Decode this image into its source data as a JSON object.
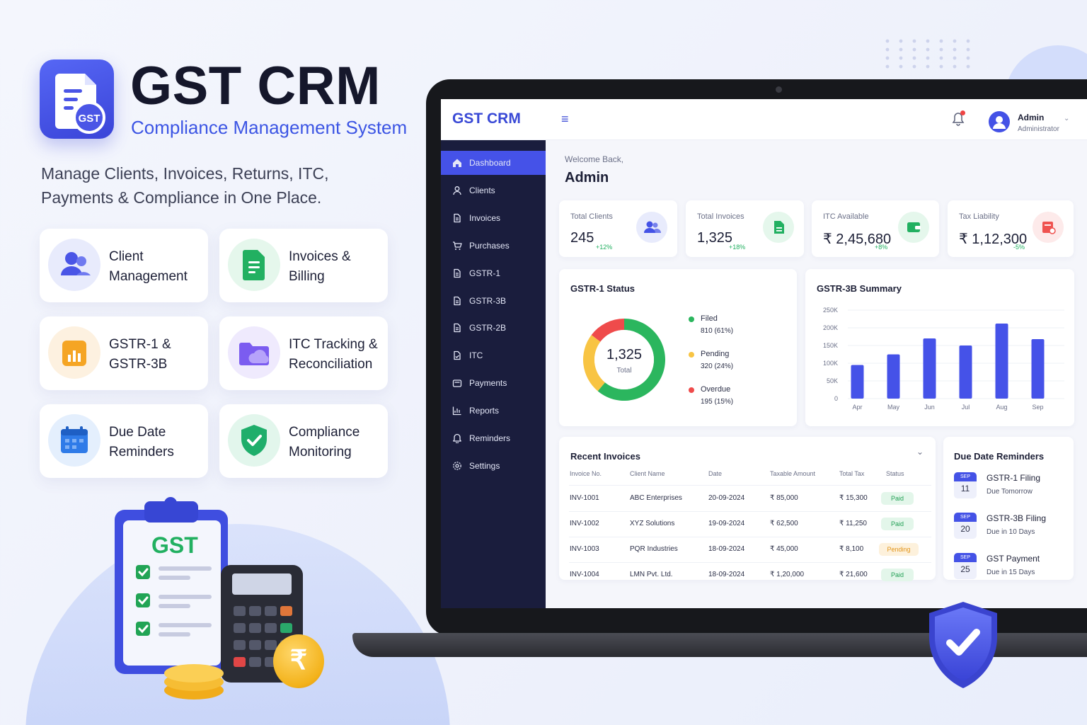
{
  "brand": {
    "title": "GST CRM",
    "subtitle": "Compliance Management System",
    "tagline": "Manage Clients, Invoices, Returns, ITC, Payments & Compliance in One Place.",
    "logo_text": "GST"
  },
  "features": [
    {
      "label": "Client Management",
      "icon": "users-icon",
      "color": "#4a55e6"
    },
    {
      "label": "Invoices & Billing",
      "icon": "document-icon",
      "color": "#22b061"
    },
    {
      "label": "GSTR-1 & GSTR-3B",
      "icon": "bar-chart-icon",
      "color": "#f5a524"
    },
    {
      "label": "ITC Tracking & Reconciliation",
      "icon": "folder-cloud-icon",
      "color": "#7b5cf0"
    },
    {
      "label": "Due Date Reminders",
      "icon": "calendar-icon",
      "color": "#2f7be8"
    },
    {
      "label": "Compliance Monitoring",
      "icon": "shield-check-icon",
      "color": "#1fae6b"
    }
  ],
  "illustration": {
    "clipboard_text": "GST",
    "coin_symbol": "₹"
  },
  "app": {
    "logo": "GST CRM",
    "menu_icon": "≡",
    "user": {
      "name": "Admin",
      "role": "Administrator"
    },
    "welcome": "Welcome Back,",
    "welcome_name": "Admin"
  },
  "sidebar": {
    "items": [
      {
        "label": "Dashboard",
        "icon": "home-icon",
        "active": true
      },
      {
        "label": "Clients",
        "icon": "user-icon"
      },
      {
        "label": "Invoices",
        "icon": "file-icon"
      },
      {
        "label": "Purchases",
        "icon": "cart-icon"
      },
      {
        "label": "GSTR-1",
        "icon": "file-icon"
      },
      {
        "label": "GSTR-3B",
        "icon": "file-icon"
      },
      {
        "label": "GSTR-2B",
        "icon": "file-icon"
      },
      {
        "label": "ITC",
        "icon": "file-check-icon"
      },
      {
        "label": "Payments",
        "icon": "wallet-icon"
      },
      {
        "label": "Reports",
        "icon": "chart-icon"
      },
      {
        "label": "Reminders",
        "icon": "bell-icon"
      },
      {
        "label": "Settings",
        "icon": "gear-icon"
      }
    ]
  },
  "stats": [
    {
      "label": "Total Clients",
      "value": "245",
      "change": "+12%",
      "change_color": "#22b061",
      "icon": "users-icon",
      "icon_bg": "#e8ebfc",
      "icon_color": "#4452e6"
    },
    {
      "label": "Total Invoices",
      "value": "1,325",
      "change": "+18%",
      "change_color": "#22b061",
      "icon": "document-icon",
      "icon_bg": "#e5f7ec",
      "icon_color": "#22b061"
    },
    {
      "label": "ITC Available",
      "value": "₹ 2,45,680",
      "change": "+8%",
      "change_color": "#22b061",
      "icon": "wallet-icon",
      "icon_bg": "#e5f7ec",
      "icon_color": "#22b061"
    },
    {
      "label": "Tax Liability",
      "value": "₹ 1,12,300",
      "change": "-5%",
      "change_color": "#22b061",
      "icon": "receipt-icon",
      "icon_bg": "#fdeaea",
      "icon_color": "#ef5350"
    }
  ],
  "gstr1": {
    "title": "GSTR-1 Status",
    "center_value": "1,325",
    "center_label": "Total",
    "legend": [
      {
        "label": "Filed",
        "detail": "810 (61%)",
        "color": "#2bb65e",
        "value": 810
      },
      {
        "label": "Pending",
        "detail": "320 (24%)",
        "color": "#f8c443",
        "value": 320
      },
      {
        "label": "Overdue",
        "detail": "195 (15%)",
        "color": "#ef4b4b",
        "value": 195
      }
    ]
  },
  "chart_data": {
    "type": "bar",
    "title": "GSTR-3B Summary",
    "categories": [
      "Apr",
      "May",
      "Jun",
      "Jul",
      "Aug",
      "Sep"
    ],
    "values": [
      95000,
      125000,
      170000,
      150000,
      212000,
      168000
    ],
    "yticks": [
      "250K",
      "200K",
      "150K",
      "100K",
      "50K",
      "0"
    ],
    "ylim": [
      0,
      250000
    ],
    "grid": true,
    "color": "#4552e8"
  },
  "invoices": {
    "title": "Recent Invoices",
    "columns": [
      "Invoice No.",
      "Client Name",
      "Date",
      "Taxable Amount",
      "Total Tax",
      "Status"
    ],
    "rows": [
      [
        "INV-1001",
        "ABC Enterprises",
        "20-09-2024",
        "₹ 85,000",
        "₹ 15,300",
        "Paid"
      ],
      [
        "INV-1002",
        "XYZ Solutions",
        "19-09-2024",
        "₹ 62,500",
        "₹ 11,250",
        "Paid"
      ],
      [
        "INV-1003",
        "PQR Industries",
        "18-09-2024",
        "₹ 45,000",
        "₹ 8,100",
        "Pending"
      ],
      [
        "INV-1004",
        "LMN Pvt. Ltd.",
        "18-09-2024",
        "₹ 1,20,000",
        "₹ 21,600",
        "Paid"
      ]
    ]
  },
  "reminders": {
    "title": "Due Date Reminders",
    "items": [
      {
        "month": "SEP",
        "day": "11",
        "title": "GSTR-1 Filing",
        "sub": "Due Tomorrow"
      },
      {
        "month": "SEP",
        "day": "20",
        "title": "GSTR-3B Filing",
        "sub": "Due in 10 Days"
      },
      {
        "month": "SEP",
        "day": "25",
        "title": "GST Payment",
        "sub": "Due in 15 Days"
      }
    ]
  }
}
